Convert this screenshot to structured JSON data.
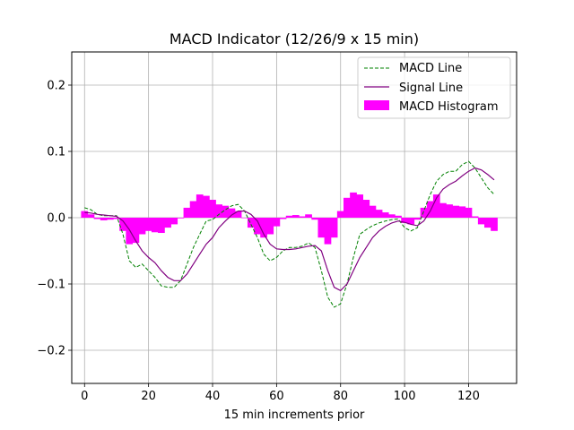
{
  "chart_data": {
    "type": "line",
    "title": "MACD Indicator (12/26/9 x 15 min)",
    "xlabel": "15 min increments prior",
    "ylabel": "",
    "xlim": [
      -4,
      135
    ],
    "ylim": [
      -0.25,
      0.25
    ],
    "grid": true,
    "legend_position": "top-right",
    "x_ticks": [
      0,
      20,
      40,
      60,
      80,
      100,
      120
    ],
    "y_ticks": [
      -0.2,
      -0.1,
      0.0,
      0.1,
      0.2
    ],
    "x_tick_labels": [
      "0",
      "20",
      "40",
      "60",
      "80",
      "100",
      "120"
    ],
    "y_tick_labels": [
      "−0.2",
      "−0.1",
      "0.0",
      "0.1",
      "0.2"
    ],
    "x": [
      0,
      2,
      4,
      6,
      8,
      10,
      12,
      14,
      16,
      18,
      20,
      22,
      24,
      26,
      28,
      30,
      32,
      34,
      36,
      38,
      40,
      42,
      44,
      46,
      48,
      50,
      52,
      54,
      56,
      58,
      60,
      62,
      64,
      66,
      68,
      70,
      72,
      74,
      76,
      78,
      80,
      82,
      84,
      86,
      88,
      90,
      92,
      94,
      96,
      98,
      100,
      102,
      104,
      106,
      108,
      110,
      112,
      114,
      116,
      118,
      120,
      122,
      124,
      126,
      128
    ],
    "series": [
      {
        "name": "MACD Line",
        "color": "#008000",
        "style": "dashed",
        "values": [
          0.015,
          0.012,
          0.005,
          0.003,
          0.003,
          0.003,
          -0.025,
          -0.065,
          -0.075,
          -0.07,
          -0.08,
          -0.09,
          -0.103,
          -0.105,
          -0.105,
          -0.095,
          -0.07,
          -0.045,
          -0.025,
          -0.005,
          -0.003,
          0.005,
          0.012,
          0.018,
          0.02,
          0.01,
          -0.01,
          -0.03,
          -0.055,
          -0.065,
          -0.06,
          -0.05,
          -0.045,
          -0.045,
          -0.043,
          -0.038,
          -0.045,
          -0.08,
          -0.12,
          -0.135,
          -0.13,
          -0.1,
          -0.06,
          -0.025,
          -0.018,
          -0.012,
          -0.008,
          -0.005,
          -0.003,
          -0.002,
          -0.015,
          -0.02,
          -0.015,
          0.01,
          0.035,
          0.055,
          0.065,
          0.07,
          0.07,
          0.08,
          0.085,
          0.075,
          0.06,
          0.045,
          0.035
        ]
      },
      {
        "name": "Signal Line",
        "color": "#800080",
        "style": "solid",
        "values": [
          0.008,
          0.007,
          0.005,
          0.004,
          0.003,
          0.002,
          -0.005,
          -0.018,
          -0.035,
          -0.05,
          -0.06,
          -0.068,
          -0.08,
          -0.09,
          -0.095,
          -0.095,
          -0.085,
          -0.07,
          -0.055,
          -0.04,
          -0.03,
          -0.015,
          -0.005,
          0.004,
          0.01,
          0.01,
          0.005,
          -0.005,
          -0.025,
          -0.04,
          -0.047,
          -0.048,
          -0.048,
          -0.047,
          -0.045,
          -0.043,
          -0.042,
          -0.05,
          -0.08,
          -0.105,
          -0.11,
          -0.1,
          -0.08,
          -0.06,
          -0.045,
          -0.03,
          -0.02,
          -0.013,
          -0.008,
          -0.005,
          -0.007,
          -0.01,
          -0.012,
          -0.005,
          0.01,
          0.03,
          0.043,
          0.05,
          0.055,
          0.063,
          0.07,
          0.075,
          0.072,
          0.065,
          0.057
        ]
      },
      {
        "name": "MACD Histogram",
        "color": "#ff00ff",
        "style": "bar",
        "values": [
          0.01,
          0.005,
          -0.002,
          -0.004,
          -0.003,
          -0.002,
          -0.02,
          -0.04,
          -0.038,
          -0.025,
          -0.02,
          -0.022,
          -0.023,
          -0.015,
          -0.01,
          -0.001,
          0.015,
          0.025,
          0.035,
          0.033,
          0.027,
          0.02,
          0.018,
          0.014,
          0.01,
          0.0,
          -0.015,
          -0.025,
          -0.03,
          -0.025,
          -0.013,
          -0.002,
          0.003,
          0.004,
          0.002,
          0.005,
          -0.003,
          -0.03,
          -0.04,
          -0.03,
          0.01,
          0.03,
          0.038,
          0.035,
          0.027,
          0.018,
          0.012,
          0.008,
          0.005,
          0.003,
          -0.008,
          -0.01,
          -0.003,
          0.015,
          0.025,
          0.035,
          0.022,
          0.02,
          0.018,
          0.017,
          0.015,
          0.002,
          -0.01,
          -0.015,
          -0.02
        ]
      }
    ]
  }
}
